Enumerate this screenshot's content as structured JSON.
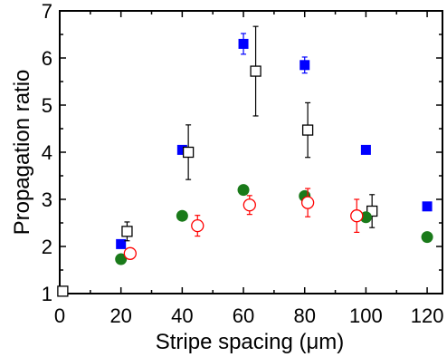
{
  "chart_data": {
    "type": "scatter",
    "xlabel": "Stripe spacing (μm)",
    "ylabel": "Propagation ratio",
    "xlim": [
      0,
      125
    ],
    "ylim": [
      1,
      7
    ],
    "xticks": [
      "0",
      "20",
      "40",
      "60",
      "80",
      "100",
      "120"
    ],
    "yticks": [
      "1",
      "2",
      "3",
      "4",
      "5",
      "6",
      "7"
    ],
    "grid": false,
    "series": [
      {
        "marker": "filled-square",
        "color": "#0000ff",
        "points": [
          {
            "x": 20,
            "y": 2.05,
            "err": 0.08
          },
          {
            "x": 40,
            "y": 4.05,
            "err": 0.07
          },
          {
            "x": 60,
            "y": 6.3,
            "err": 0.22
          },
          {
            "x": 80,
            "y": 5.85,
            "err": 0.17
          },
          {
            "x": 100,
            "y": 4.05,
            "err": 0
          },
          {
            "x": 120,
            "y": 2.85,
            "err": 0
          }
        ]
      },
      {
        "marker": "open-square",
        "color": "#000000",
        "points": [
          {
            "x": 1,
            "y": 1.05,
            "err": 0
          },
          {
            "x": 22,
            "y": 2.32,
            "err": 0.2
          },
          {
            "x": 42,
            "y": 4.0,
            "err": 0.58
          },
          {
            "x": 64,
            "y": 5.72,
            "err": 0.95
          },
          {
            "x": 81,
            "y": 4.47,
            "err": 0.58
          },
          {
            "x": 102,
            "y": 2.75,
            "err": 0.35
          }
        ]
      },
      {
        "marker": "filled-circle",
        "color": "#1a7a1a",
        "points": [
          {
            "x": 20,
            "y": 1.73,
            "err": 0
          },
          {
            "x": 40,
            "y": 2.65,
            "err": 0
          },
          {
            "x": 60,
            "y": 3.2,
            "err": 0
          },
          {
            "x": 80,
            "y": 3.07,
            "err": 0
          },
          {
            "x": 100,
            "y": 2.62,
            "err": 0
          },
          {
            "x": 120,
            "y": 2.2,
            "err": 0
          }
        ]
      },
      {
        "marker": "open-circle",
        "color": "#ff0000",
        "points": [
          {
            "x": 23,
            "y": 1.85,
            "err": 0
          },
          {
            "x": 45,
            "y": 2.44,
            "err": 0.22
          },
          {
            "x": 62,
            "y": 2.88,
            "err": 0.2
          },
          {
            "x": 81,
            "y": 2.93,
            "err": 0.3
          },
          {
            "x": 97,
            "y": 2.65,
            "err": 0.35
          }
        ]
      }
    ]
  }
}
